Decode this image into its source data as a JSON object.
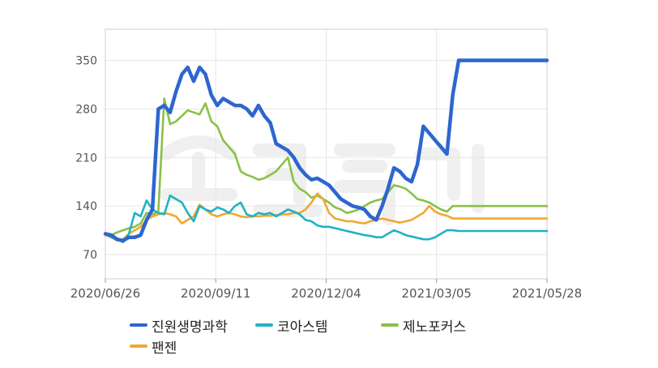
{
  "chart_data": {
    "type": "line",
    "title": "",
    "xlabel": "",
    "ylabel": "",
    "ylim": [
      35,
      395
    ],
    "yticks": [
      70,
      140,
      210,
      280,
      350
    ],
    "x_tick_labels": [
      "2020/06/26",
      "2020/09/11",
      "2020/12/04",
      "2021/03/05",
      "2021/05/28"
    ],
    "grid": true,
    "legend_position": "bottom",
    "x": [
      0,
      2,
      4,
      6,
      8,
      10,
      12,
      14,
      16,
      18,
      20,
      22,
      24,
      26,
      28,
      30,
      32,
      34,
      36,
      38,
      40,
      42,
      44,
      46,
      48,
      50,
      52,
      54,
      56,
      58,
      60,
      62,
      64,
      66,
      68,
      70,
      72,
      74,
      76,
      78,
      80,
      82,
      84,
      86,
      88,
      90,
      92,
      94,
      96,
      98,
      100,
      102,
      104,
      106,
      108,
      110,
      112,
      114,
      116,
      118,
      120,
      122,
      124,
      126,
      128,
      130,
      132,
      134,
      136,
      138,
      140,
      142,
      144,
      146,
      148,
      150
    ],
    "series": [
      {
        "name": "진원생명과학",
        "color": "#2E66D0",
        "values": [
          100,
          98,
          92,
          90,
          95,
          95,
          98,
          120,
          135,
          280,
          285,
          275,
          305,
          330,
          340,
          320,
          340,
          330,
          300,
          285,
          295,
          290,
          285,
          285,
          280,
          270,
          285,
          270,
          260,
          230,
          225,
          220,
          210,
          195,
          185,
          178,
          180,
          175,
          170,
          160,
          150,
          145,
          140,
          138,
          135,
          125,
          120,
          140,
          165,
          195,
          190,
          180,
          175,
          200,
          255,
          245,
          235,
          225,
          215,
          300,
          350,
          350,
          350,
          350,
          350,
          350,
          350,
          350,
          350,
          350,
          350,
          350,
          350,
          350,
          350,
          350
        ]
      },
      {
        "name": "코아스템",
        "color": "#1FB2C8",
        "values": [
          100,
          95,
          92,
          88,
          100,
          130,
          125,
          148,
          135,
          130,
          128,
          155,
          150,
          145,
          130,
          118,
          140,
          135,
          132,
          138,
          135,
          130,
          140,
          145,
          128,
          125,
          130,
          128,
          130,
          125,
          130,
          135,
          132,
          128,
          120,
          118,
          112,
          110,
          110,
          108,
          106,
          104,
          102,
          100,
          98,
          97,
          95,
          95,
          100,
          105,
          102,
          98,
          96,
          94,
          92,
          92,
          95,
          100,
          105,
          105,
          104,
          104,
          104,
          104,
          104,
          104,
          104,
          104,
          104,
          104,
          104,
          104,
          104,
          104,
          104,
          104
        ]
      },
      {
        "name": "제노포커스",
        "color": "#8AC048",
        "values": [
          100,
          98,
          102,
          105,
          108,
          110,
          115,
          130,
          128,
          132,
          295,
          258,
          262,
          270,
          278,
          275,
          272,
          288,
          262,
          255,
          235,
          225,
          215,
          190,
          185,
          182,
          178,
          180,
          185,
          190,
          200,
          210,
          175,
          165,
          160,
          152,
          155,
          150,
          145,
          138,
          135,
          130,
          132,
          135,
          140,
          145,
          148,
          150,
          160,
          170,
          168,
          165,
          158,
          150,
          148,
          145,
          140,
          135,
          132,
          140,
          140,
          140,
          140,
          140,
          140,
          140,
          140,
          140,
          140,
          140,
          140,
          140,
          140,
          140,
          140,
          140
        ]
      },
      {
        "name": "팬젠",
        "color": "#F0A830",
        "values": [
          98,
          95,
          90,
          92,
          100,
          105,
          110,
          120,
          125,
          128,
          130,
          128,
          125,
          115,
          120,
          125,
          142,
          135,
          128,
          125,
          128,
          130,
          128,
          125,
          124,
          125,
          125,
          126,
          126,
          127,
          128,
          128,
          130,
          130,
          135,
          145,
          158,
          150,
          130,
          122,
          120,
          118,
          118,
          116,
          115,
          118,
          120,
          122,
          120,
          118,
          116,
          118,
          120,
          125,
          130,
          140,
          132,
          128,
          126,
          122,
          122,
          122,
          122,
          122,
          122,
          122,
          122,
          122,
          122,
          122,
          122,
          122,
          122,
          122,
          122,
          122
        ]
      }
    ]
  }
}
